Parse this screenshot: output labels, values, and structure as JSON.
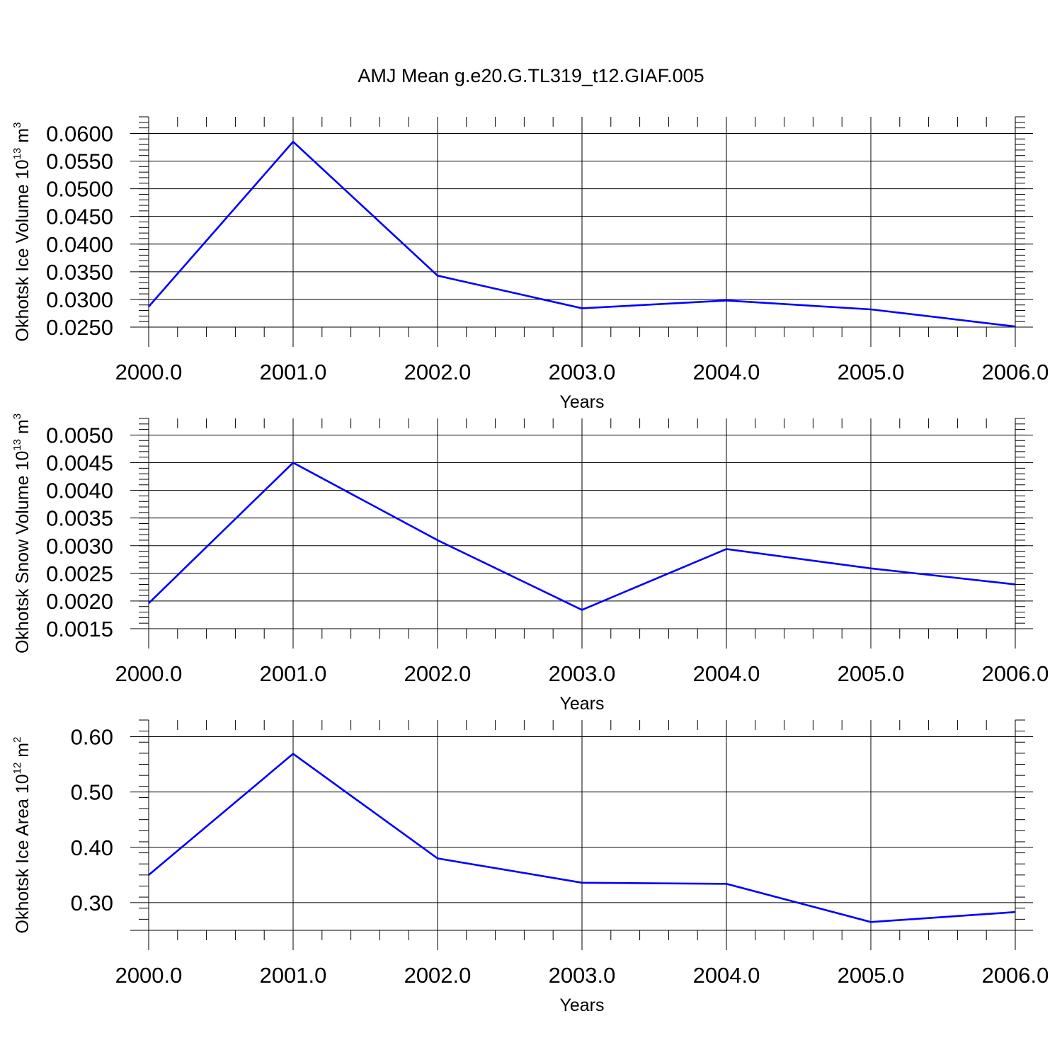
{
  "title": "AMJ Mean g.e20.G.TL319_t12.GIAF.005",
  "colors": {
    "series": "#0000ff",
    "axes": "#000000",
    "grid": "#666666"
  },
  "chart_data": [
    {
      "type": "line",
      "x": [
        2000,
        2001,
        2002,
        2003,
        2004,
        2005,
        2006
      ],
      "xticks": [
        "2000.0",
        "2001.0",
        "2002.0",
        "2003.0",
        "2004.0",
        "2005.0",
        "2006.0"
      ],
      "xlabel": "Years",
      "ylabel": {
        "text": "Okhotsk Ice Volume 10",
        "sup1": "13",
        "unit": " m",
        "sup2": "3"
      },
      "ylim": [
        0.025,
        0.063
      ],
      "yticks": [
        "0.0600",
        "0.0550",
        "0.0500",
        "0.0450",
        "0.0400",
        "0.0350",
        "0.0300",
        "0.0250"
      ],
      "series": [
        {
          "values": [
            0.0287,
            0.0585,
            0.0343,
            0.0284,
            0.0298,
            0.0282,
            0.0251
          ]
        }
      ],
      "grid": "x dashed"
    },
    {
      "type": "line",
      "x": [
        2000,
        2001,
        2002,
        2003,
        2004,
        2005,
        2006
      ],
      "xticks": [
        "2000.0",
        "2001.0",
        "2002.0",
        "2003.0",
        "2004.0",
        "2005.0",
        "2006.0"
      ],
      "xlabel": "Years",
      "ylabel": {
        "text": "Okhotsk Snow Volume 10",
        "sup1": "13",
        "unit": " m",
        "sup2": "3"
      },
      "ylim": [
        0.0015,
        0.0053
      ],
      "yticks": [
        "0.0050",
        "0.0045",
        "0.0040",
        "0.0035",
        "0.0030",
        "0.0025",
        "0.0020",
        "0.0015"
      ],
      "series": [
        {
          "values": [
            0.00196,
            0.0045,
            0.0031,
            0.00184,
            0.00294,
            0.00259,
            0.0023
          ]
        }
      ],
      "grid": "x dashed"
    },
    {
      "type": "line",
      "x": [
        2000,
        2001,
        2002,
        2003,
        2004,
        2005,
        2006
      ],
      "xticks": [
        "2000.0",
        "2001.0",
        "2002.0",
        "2003.0",
        "2004.0",
        "2005.0",
        "2006.0"
      ],
      "xlabel": "Years",
      "ylabel": {
        "text": "Okhotsk Ice Area 10",
        "sup1": "12",
        "unit": " m",
        "sup2": "2"
      },
      "ylim": [
        0.25,
        0.63
      ],
      "yticks": [
        "0.60",
        "0.50",
        "0.40",
        "0.30"
      ],
      "series": [
        {
          "values": [
            0.35,
            0.569,
            0.38,
            0.336,
            0.334,
            0.265,
            0.283
          ]
        }
      ],
      "grid": "x dashed"
    }
  ]
}
